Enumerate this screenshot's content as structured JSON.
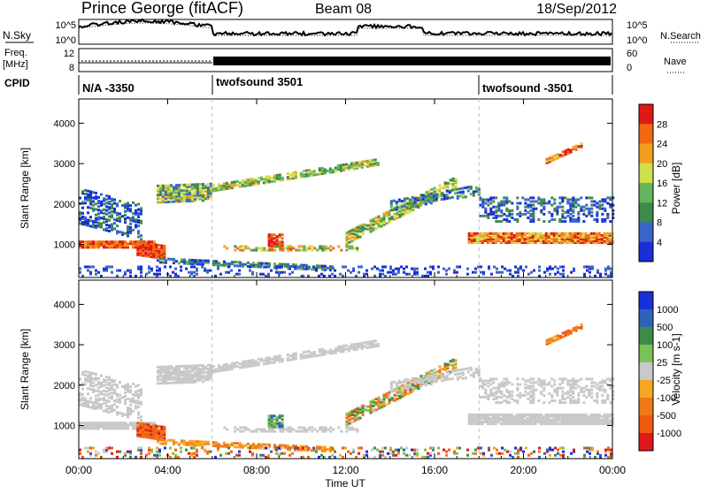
{
  "header": {
    "station": "Prince George (fitACF)",
    "beam": "Beam 08",
    "date": "18/Sep/2012"
  },
  "sky_panel": {
    "left_label": "N.Sky",
    "right_label": "N.Search",
    "top_tick": "10^5",
    "bottom_tick": "10^0"
  },
  "freq_panel": {
    "left_label_line1": "Freq.",
    "left_label_line2": "[MHz]",
    "left_ticks": [
      "12",
      "8"
    ],
    "right_ticks": [
      "60",
      "0"
    ],
    "right_label": "Nave"
  },
  "cpid_panel": {
    "label": "CPID",
    "segments": [
      {
        "text": "N/A -3350",
        "start_hour": 0
      },
      {
        "text": "twofsound 3501",
        "start_hour": 6
      },
      {
        "text": "twofsound -3501",
        "start_hour": 18
      }
    ]
  },
  "colors": {
    "power": [
      "#1a2fd8",
      "#3a66c8",
      "#3f8a4a",
      "#64b45a",
      "#cfe04a",
      "#f0a020",
      "#f06a10",
      "#e01818"
    ],
    "velocity": [
      "#1a2fd8",
      "#2f63b8",
      "#3f8a4a",
      "#7ac255",
      "#c8c8c8",
      "#f5a623",
      "#f07818",
      "#f05a10",
      "#e01818"
    ]
  },
  "chart_data": [
    {
      "type": "heatmap",
      "panel": "power",
      "ylabel": "Slant Range [km]",
      "xlabel": "Time UT",
      "x_range_hours": [
        0,
        24
      ],
      "ylim": [
        180,
        4600
      ],
      "yticks": [
        "1000",
        "2000",
        "3000",
        "4000"
      ],
      "colorbar_label": "Power [dB]",
      "colorbar_ticks": [
        "4",
        "8",
        "12",
        "16",
        "20",
        "24",
        "28"
      ],
      "colorbar_range": [
        0,
        32
      ]
    },
    {
      "type": "heatmap",
      "panel": "velocity",
      "ylabel": "Slant Range [km]",
      "xlabel": "Time UT",
      "x_range_hours": [
        0,
        24
      ],
      "ylim": [
        180,
        4600
      ],
      "yticks": [
        "1000",
        "2000",
        "3000",
        "4000"
      ],
      "colorbar_label": "Velocity [m s-1]",
      "colorbar_ticks": [
        "1000",
        "500",
        "100",
        "25",
        "-25",
        "-100",
        "-500",
        "-1000"
      ]
    }
  ],
  "x_axis": {
    "ticks": [
      "00:00",
      "04:00",
      "08:00",
      "12:00",
      "16:00",
      "20:00",
      "00:00"
    ],
    "label": "Time UT"
  }
}
